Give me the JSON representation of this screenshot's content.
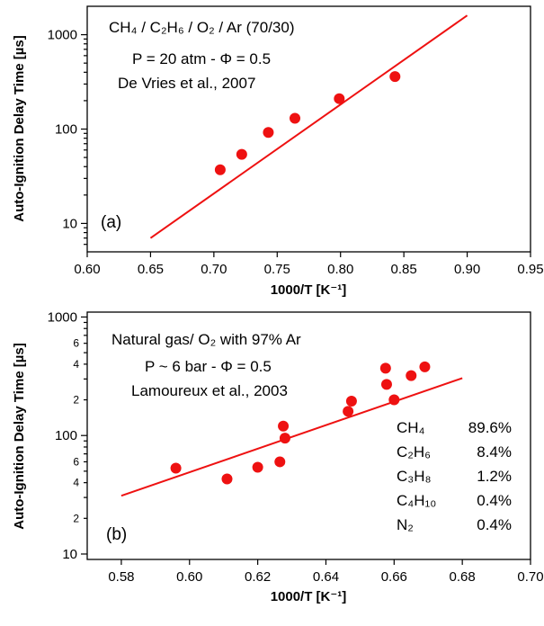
{
  "chart_data": [
    {
      "type": "scatter",
      "panel_label": "(a)",
      "xlabel": "1000/T [K⁻¹]",
      "ylabel": "Auto-Ignition Delay Time [µs]",
      "xlim": [
        0.6,
        0.95
      ],
      "ylim": [
        5,
        2000
      ],
      "y_scale": "log",
      "x_ticks": [
        "0.60",
        "0.65",
        "0.70",
        "0.75",
        "0.80",
        "0.85",
        "0.90",
        "0.95"
      ],
      "y_ticks": [
        "10",
        "100",
        "1000"
      ],
      "y_minor_tick_labels": [],
      "annotations": [
        "CH₄ / C₂H₆ / O₂ / Ar (70/30)",
        "P = 20 atm - Φ = 0.5",
        "De Vries et al., 2007"
      ],
      "series": [
        {
          "kind": "points",
          "color": "#ee1111",
          "x": [
            0.705,
            0.722,
            0.743,
            0.764,
            0.799,
            0.843
          ],
          "y": [
            37,
            54,
            92,
            130,
            210,
            360
          ]
        },
        {
          "kind": "line",
          "color": "#ee1111",
          "x": [
            0.65,
            0.9
          ],
          "y": [
            7,
            1600
          ]
        }
      ],
      "grid": false
    },
    {
      "type": "scatter",
      "panel_label": "(b)",
      "xlabel": "1000/T [K⁻¹]",
      "ylabel": "Auto-Ignition Delay Time [µs]",
      "xlim": [
        0.57,
        0.7
      ],
      "ylim": [
        9,
        1100
      ],
      "y_scale": "log",
      "x_ticks": [
        "0.58",
        "0.60",
        "0.62",
        "0.64",
        "0.66",
        "0.68",
        "0.70"
      ],
      "y_ticks": [
        "10",
        "100",
        "1000"
      ],
      "y_minor_tick_labels": [
        "2",
        "4",
        "6"
      ],
      "annotations": [
        "Natural gas/ O₂ with 97% Ar",
        "P ~ 6 bar - Φ = 0.5",
        "Lamoureux et al., 2003"
      ],
      "composition": [
        {
          "species": "CH₄",
          "value": "89.6%"
        },
        {
          "species": "C₂H₆",
          "value": "8.4%"
        },
        {
          "species": "C₃H₈",
          "value": "1.2%"
        },
        {
          "species": "C₄H₁₀",
          "value": "0.4%"
        },
        {
          "species": "N₂",
          "value": "0.4%"
        }
      ],
      "series": [
        {
          "kind": "points",
          "color": "#ee1111",
          "x": [
            0.596,
            0.611,
            0.62,
            0.6265,
            0.6275,
            0.628,
            0.6465,
            0.6475,
            0.6575,
            0.6578,
            0.66,
            0.665,
            0.669
          ],
          "y": [
            53,
            43,
            54,
            60,
            120,
            95,
            160,
            195,
            370,
            270,
            200,
            320,
            380
          ]
        },
        {
          "kind": "line",
          "color": "#ee1111",
          "x": [
            0.58,
            0.68
          ],
          "y": [
            31,
            305
          ]
        }
      ],
      "grid": false
    }
  ]
}
